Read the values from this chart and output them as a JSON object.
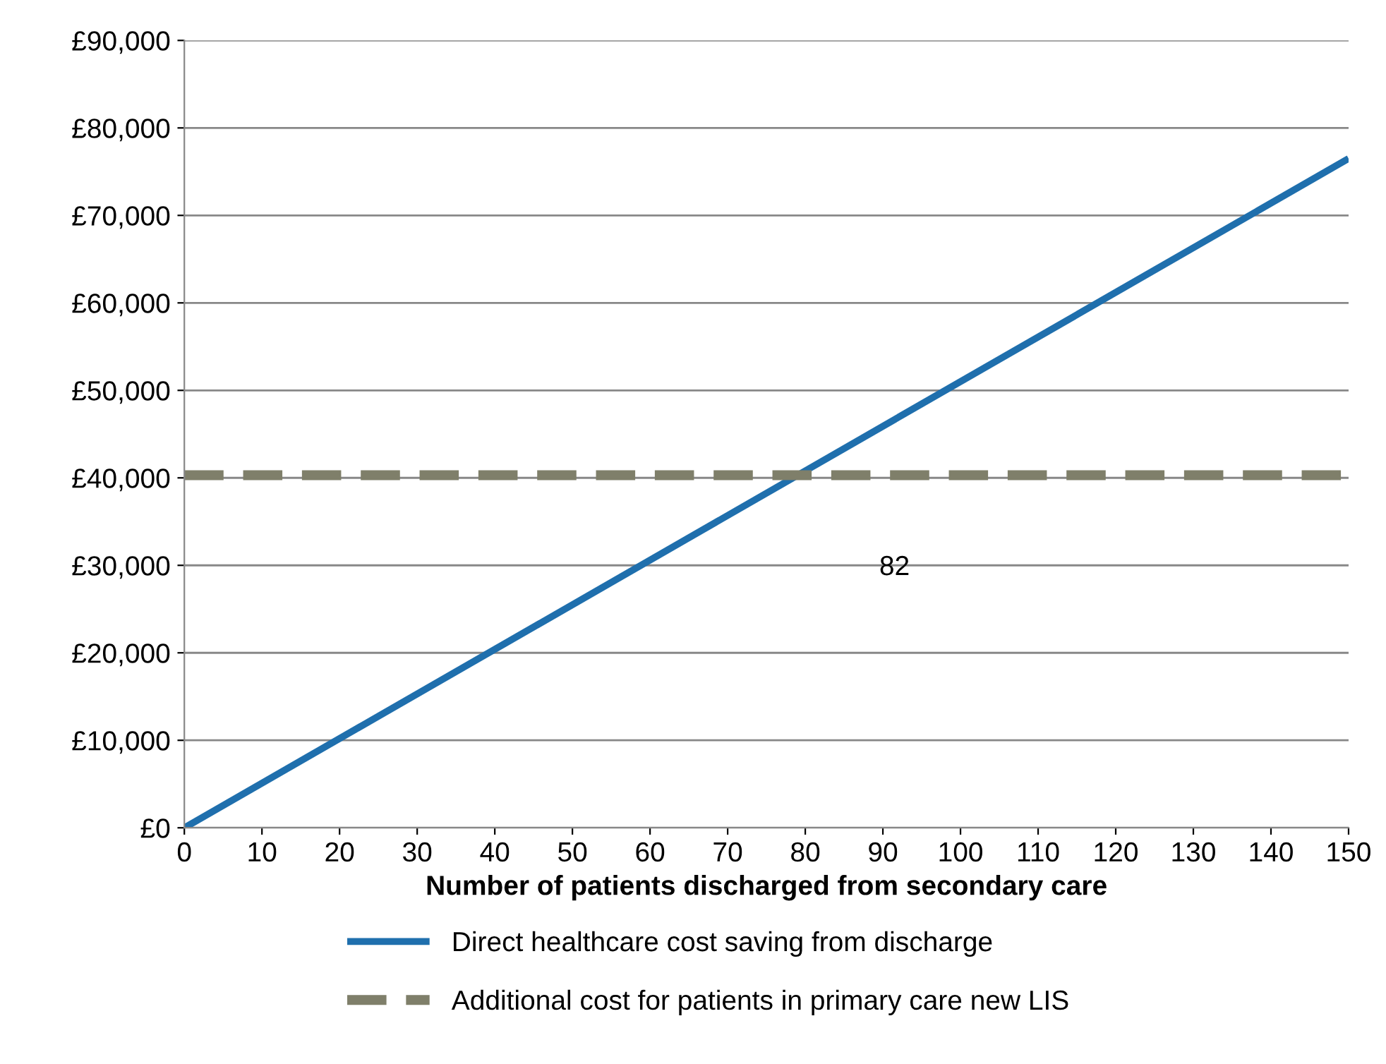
{
  "chart_data": {
    "type": "line",
    "xlabel": "Number of patients discharged from secondary care",
    "series": [
      {
        "name": "Direct healthcare cost saving from discharge",
        "color": "#1f6fad",
        "values": [
          0,
          76500
        ],
        "line_style": "solid"
      },
      {
        "name": "Additional cost for patients in primary care new LIS",
        "color": "#7f7f6a",
        "values": [
          40300,
          40300
        ],
        "line_style": "dashed"
      }
    ],
    "x": [
      0,
      150
    ],
    "annotations": [
      "82"
    ],
    "xlim": [
      0,
      150
    ],
    "xticks": [
      0,
      10,
      20,
      30,
      40,
      50,
      60,
      70,
      80,
      90,
      100,
      110,
      120,
      130,
      140,
      150
    ],
    "ylim": [
      0,
      90000
    ],
    "yticks": [
      {
        "value": 0,
        "label": "£0"
      },
      {
        "value": 10000,
        "label": "£10,000"
      },
      {
        "value": 20000,
        "label": "£20,000"
      },
      {
        "value": 30000,
        "label": "£30,000"
      },
      {
        "value": 40000,
        "label": "£40,000"
      },
      {
        "value": 50000,
        "label": "£50,000"
      },
      {
        "value": 60000,
        "label": "£60,000"
      },
      {
        "value": 70000,
        "label": "£70,000"
      },
      {
        "value": 80000,
        "label": "£80,000"
      },
      {
        "value": 90000,
        "label": "£90,000"
      }
    ],
    "grid": "y",
    "legend": "bottom",
    "marker": "none"
  }
}
